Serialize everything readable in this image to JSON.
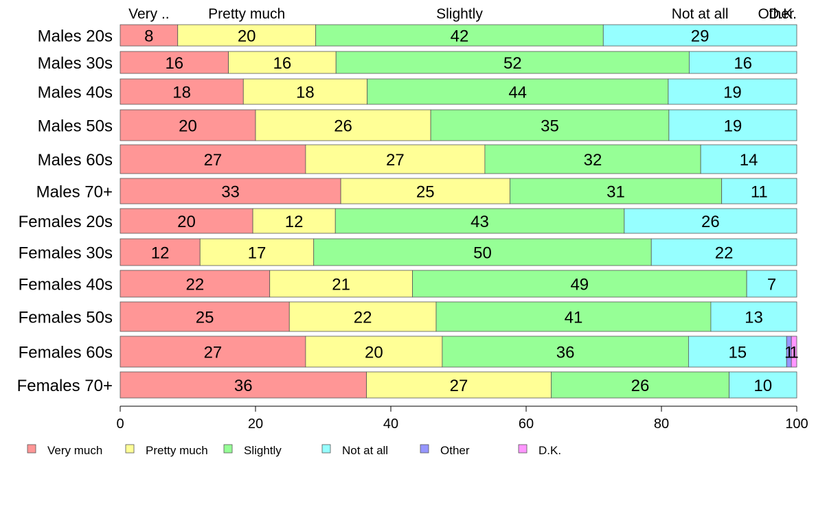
{
  "chart_data": {
    "type": "bar",
    "orientation": "horizontal",
    "stacked": true,
    "xlim": [
      0,
      100
    ],
    "x_ticks": [
      0,
      20,
      40,
      60,
      80,
      100
    ],
    "grid": false,
    "legend_position": "bottom",
    "categories": [
      "Males 20s",
      "Males 30s",
      "Males 40s",
      "Males 50s",
      "Males 60s",
      "Males 70+",
      "Females 20s",
      "Females 30s",
      "Females 40s",
      "Females 50s",
      "Females 60s",
      "Females 70+"
    ],
    "top_labels": [
      "Very ..",
      "Pretty much",
      "Slightly",
      "Not at all",
      "Other",
      "D.K."
    ],
    "series": [
      {
        "name": "Very much",
        "color": "#ff9696",
        "values": [
          8.5,
          16,
          18.2,
          20,
          27.4,
          32.6,
          19.6,
          11.8,
          22.1,
          25,
          27.4,
          36.4
        ]
      },
      {
        "name": "Pretty much",
        "color": "#ffff96",
        "values": [
          20.4,
          15.9,
          18.3,
          25.9,
          26.5,
          25,
          12.2,
          16.8,
          21.1,
          21.7,
          20.2,
          27.3
        ]
      },
      {
        "name": "Slightly",
        "color": "#96ff96",
        "values": [
          42.5,
          52.2,
          44.5,
          35.2,
          31.9,
          31.3,
          42.7,
          49.9,
          49.4,
          40.6,
          36.4,
          26.3
        ]
      },
      {
        "name": "Not at all",
        "color": "#96ffff",
        "values": [
          28.6,
          15.9,
          19,
          18.9,
          14.2,
          11.1,
          25.5,
          21.5,
          7.4,
          12.7,
          14.5,
          10
        ]
      },
      {
        "name": "Other",
        "color": "#9696ff",
        "values": [
          0,
          0,
          0,
          0,
          0,
          0,
          0,
          0,
          0,
          0,
          0.7,
          0
        ]
      },
      {
        "name": "D.K.",
        "color": "#ff96ff",
        "values": [
          0,
          0,
          0,
          0,
          0,
          0,
          0,
          0,
          0,
          0,
          0.8,
          0
        ]
      }
    ],
    "data_labels": [
      [
        "8",
        "20",
        "42",
        "29",
        "",
        ""
      ],
      [
        "16",
        "16",
        "52",
        "16",
        "",
        ""
      ],
      [
        "18",
        "18",
        "44",
        "19",
        "",
        ""
      ],
      [
        "20",
        "26",
        "35",
        "19",
        "",
        ""
      ],
      [
        "27",
        "27",
        "32",
        "14",
        "",
        ""
      ],
      [
        "33",
        "25",
        "31",
        "11",
        "",
        ""
      ],
      [
        "20",
        "12",
        "43",
        "26",
        "",
        ""
      ],
      [
        "12",
        "17",
        "50",
        "22",
        "",
        ""
      ],
      [
        "22",
        "21",
        "49",
        "7",
        "",
        ""
      ],
      [
        "25",
        "22",
        "41",
        "13",
        "",
        ""
      ],
      [
        "27",
        "20",
        "36",
        "15",
        "1",
        "1"
      ],
      [
        "36",
        "27",
        "26",
        "10",
        "",
        ""
      ]
    ]
  }
}
